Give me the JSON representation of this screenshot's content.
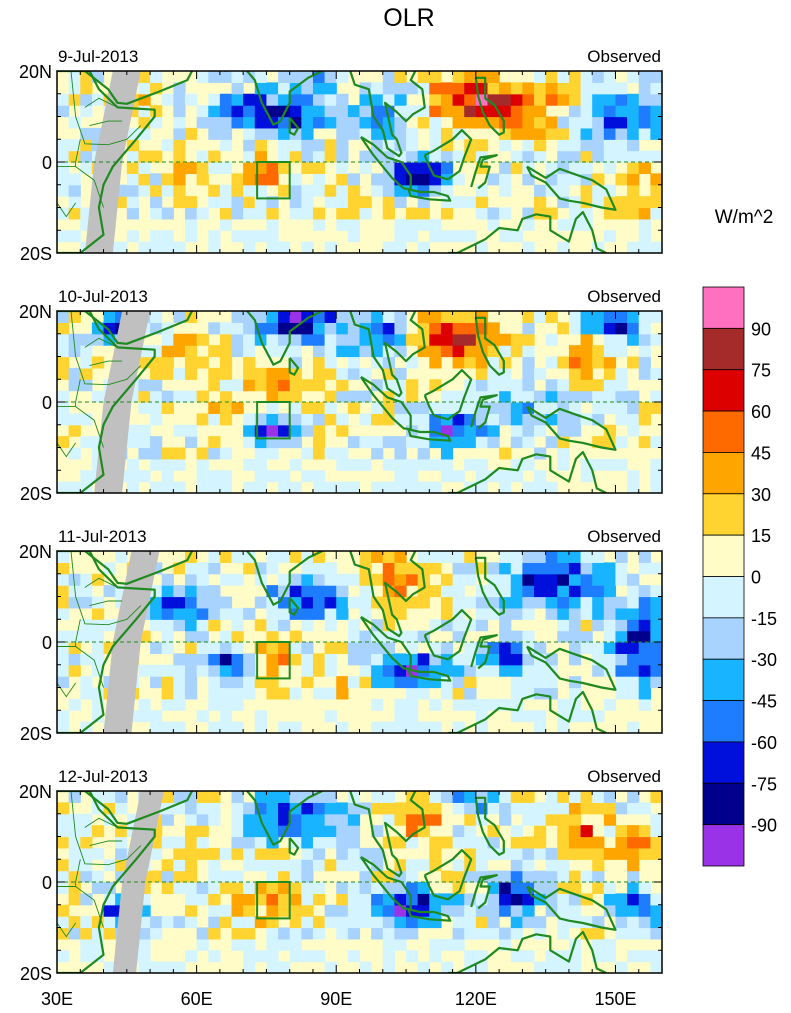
{
  "chart_data": {
    "type": "heatmap",
    "title": "OLR",
    "units_label": "W/m^2",
    "panel_right_label": "Observed",
    "x_ticks": [
      "30E",
      "60E",
      "90E",
      "120E",
      "150E"
    ],
    "x_tick_values": [
      30,
      60,
      90,
      120,
      150
    ],
    "y_ticks": [
      "20N",
      "0",
      "20S"
    ],
    "y_tick_values": [
      20,
      0,
      -20
    ],
    "xlim": [
      30,
      160
    ],
    "ylim": [
      -20,
      20
    ],
    "box_region": {
      "lon": [
        73,
        80
      ],
      "lat": [
        -8,
        0
      ]
    },
    "colorbar": {
      "labels": [
        "90",
        "75",
        "60",
        "45",
        "30",
        "15",
        "0",
        "-15",
        "-30",
        "-45",
        "-60",
        "-75",
        "-90"
      ],
      "colors": [
        "#ff70c0",
        "#a52a2a",
        "#dc0000",
        "#ff6a00",
        "#ffa500",
        "#ffd330",
        "#fffcc8",
        "#d4f5ff",
        "#a8d3ff",
        "#18b4ff",
        "#1e7cff",
        "#0010dc",
        "#00008c",
        "#9a32e8"
      ]
    },
    "panels": [
      {
        "date": "9-Jul-2013"
      },
      {
        "date": "10-Jul-2013"
      },
      {
        "date": "11-Jul-2013"
      },
      {
        "date": "12-Jul-2013"
      }
    ]
  }
}
